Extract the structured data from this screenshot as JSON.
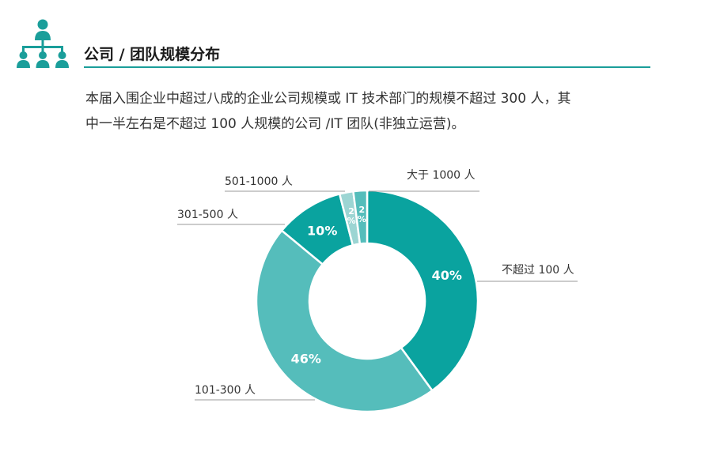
{
  "section": {
    "title": "公司 / 团队规模分布",
    "icon": "org-chart-icon"
  },
  "intro": {
    "line1": "本届入围企业中超过八成的企业公司规模或 IT 技术部门的规模不超过 300 人，其",
    "line2": "中一半左右是不超过 100 人规模的公司 /IT 团队(非独立运营)。"
  },
  "colors": {
    "accent": "#1a9e9a",
    "slice_dark": "#0aa39f",
    "slice_light": "#55bdbb",
    "slice_pale": "#9cd5d3"
  },
  "chart_data": {
    "type": "pie",
    "donut": true,
    "categories": [
      "不超过 100 人",
      "101-300 人",
      "301-500 人",
      "501-1000 人",
      "大于 1000 人"
    ],
    "values": [
      40,
      46,
      10,
      2,
      2
    ],
    "value_labels": [
      "40%",
      "46%",
      "10%",
      "2%",
      "2%"
    ],
    "colors": [
      "#0aa39f",
      "#55bdbb",
      "#0aa39f",
      "#9cd5d3",
      "#55bdbb"
    ]
  }
}
